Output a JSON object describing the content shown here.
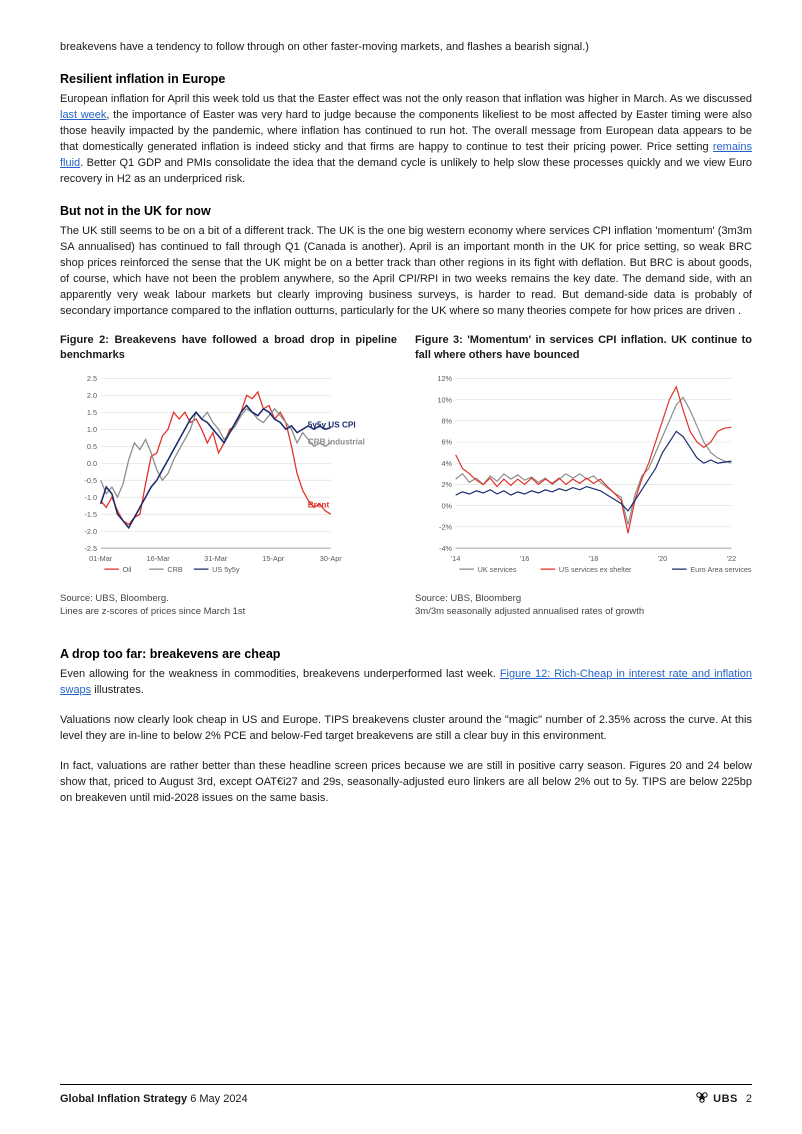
{
  "introTail": "breakevens have a tendency to follow through on other faster-moving markets, and flashes a bearish signal.)",
  "sec1": {
    "heading": "Resilient inflation in Europe",
    "body_a": "European inflation for April this week told us that the Easter effect was not the only reason that inflation was higher in March. As we discussed ",
    "link1": "last week",
    "body_b": ", the importance of Easter was very hard to judge because the components likeliest to be most affected by Easter timing were also those heavily impacted by the pandemic, where inflation has continued to run hot. The overall message from European data appears to be that domestically generated inflation is indeed sticky and that firms are happy to continue to test their pricing power. Price setting ",
    "link2": "remains fluid",
    "body_c": ". Better Q1 GDP and PMIs consolidate the idea that the demand cycle is unlikely to help slow these processes quickly and we view Euro recovery in H2 as an underpriced risk."
  },
  "sec2": {
    "heading": "But not in the UK for now",
    "body": "The UK still seems to be on a bit of a different track. The UK is the one big western economy where services CPI inflation 'momentum' (3m3m SA annualised) has continued to fall through Q1 (Canada is another). April is an important month in the UK for price setting, so weak BRC shop prices reinforced the sense that the UK might be on a better track than other regions in its fight with deflation. But BRC is about goods, of course, which have not been the problem anywhere, so the April CPI/RPI in two weeks remains the key date. The demand side, with an apparently very weak labour markets but clearly improving business surveys, is harder to read. But demand-side data is probably of secondary importance compared to the inflation outturns, particularly for the UK where so many theories compete for how prices are driven ."
  },
  "fig2": {
    "title": "Figure 2: Breakevens have followed a broad drop in pipeline benchmarks",
    "source1": "Source: UBS, Bloomberg.",
    "source2": "Lines are z-scores of prices since March 1st",
    "chart": {
      "type": "line",
      "ylim": [
        -2.5,
        2.5
      ],
      "ytick_step": 0.5,
      "yticks_labels": [
        "2.5",
        "2.0",
        "1.5",
        "1.0",
        "0.5",
        "0.0",
        "-0.5",
        "-1.0",
        "-1.5",
        "-2.0",
        "-2.5"
      ],
      "xticks": [
        "01-Mar",
        "16-Mar",
        "31-Mar",
        "15-Apr",
        "30-Apr"
      ],
      "grid_color": "#d9d9d9",
      "background_color": "#ffffff",
      "axis_color": "#666666",
      "tick_fontsize": 8,
      "tick_color": "#595959",
      "legend": [
        "Oil",
        "CRB",
        "US 5y5y"
      ],
      "legend_colors": [
        "#e03127",
        "#8c8c8c",
        "#1b2a6b"
      ],
      "legend_fontsize": 8,
      "annotations": [
        {
          "text": "5y5y US CPI",
          "color": "#1b2a6b",
          "x": 0.9,
          "y_val": 1.05
        },
        {
          "text": "CRB industrial",
          "color": "#8c8c8c",
          "x": 0.9,
          "y_val": 0.55
        },
        {
          "text": "Brent",
          "color": "#e03127",
          "x": 0.9,
          "y_val": -1.3
        }
      ],
      "series": {
        "Oil": {
          "color": "#e03127",
          "width": 1.4,
          "vals": [
            -1.1,
            -1.3,
            -1.0,
            -1.4,
            -1.7,
            -1.8,
            -1.6,
            -1.5,
            -0.6,
            0.2,
            0.3,
            0.8,
            1.0,
            1.5,
            1.3,
            1.5,
            1.2,
            1.3,
            1.0,
            0.6,
            0.9,
            0.3,
            0.6,
            1.0,
            1.1,
            1.5,
            2.0,
            1.9,
            2.1,
            1.6,
            1.7,
            1.3,
            1.5,
            1.2,
            0.5,
            -0.3,
            -0.8,
            -1.1,
            -1.3,
            -1.2,
            -1.4,
            -1.5
          ]
        },
        "CRB": {
          "color": "#8c8c8c",
          "width": 1.4,
          "vals": [
            -0.5,
            -0.9,
            -0.7,
            -1.0,
            -0.6,
            0.1,
            0.6,
            0.4,
            0.7,
            0.3,
            -0.2,
            -0.5,
            -0.3,
            0.1,
            0.4,
            0.7,
            1.0,
            1.5,
            1.3,
            1.5,
            1.2,
            1.0,
            0.7,
            0.9,
            1.1,
            1.4,
            1.6,
            1.5,
            1.3,
            1.2,
            1.4,
            1.6,
            1.4,
            1.2,
            1.0,
            0.6,
            0.9,
            0.7,
            0.5,
            0.6,
            0.5,
            0.6
          ]
        },
        "US5y5y": {
          "color": "#1b2a6b",
          "width": 1.7,
          "vals": [
            -1.2,
            -0.7,
            -0.9,
            -1.5,
            -1.7,
            -1.9,
            -1.6,
            -1.3,
            -1.0,
            -0.7,
            -0.5,
            -0.2,
            0.1,
            0.4,
            0.7,
            1.0,
            1.3,
            1.5,
            1.3,
            1.2,
            1.0,
            0.8,
            0.6,
            0.9,
            1.2,
            1.5,
            1.7,
            1.5,
            1.4,
            1.6,
            1.5,
            1.3,
            1.2,
            1.0,
            1.1,
            0.9,
            1.0,
            1.1,
            1.0,
            1.1,
            1.0,
            1.05
          ]
        }
      }
    }
  },
  "fig3": {
    "title": "Figure 3: 'Momentum' in services CPI inflation. UK continue to fall where others have bounced",
    "source1": "Source: UBS, Bloomberg",
    "source2": "3m/3m seasonally adjusted annualised rates of growth",
    "chart": {
      "type": "line",
      "ylim": [
        -4,
        12
      ],
      "ytick_step": 2,
      "yticks_labels": [
        "12%",
        "10%",
        "8%",
        "6%",
        "4%",
        "2%",
        "0%",
        "-2%",
        "-4%"
      ],
      "xticks": [
        "'14",
        "'16",
        "'18",
        "'20",
        "'22"
      ],
      "grid_color": "#d9d9d9",
      "background_color": "#ffffff",
      "axis_color": "#666666",
      "tick_fontsize": 8,
      "tick_color": "#595959",
      "legend": [
        "UK services",
        "US services ex shelter",
        "Euro Area services"
      ],
      "legend_colors": [
        "#8c8c8c",
        "#e03127",
        "#1b2a6b"
      ],
      "legend_fontsize": 8,
      "series": {
        "UK": {
          "color": "#8c8c8c",
          "width": 1.3,
          "vals": [
            2.5,
            3.0,
            2.2,
            2.6,
            2.0,
            2.8,
            2.3,
            3.0,
            2.5,
            2.9,
            2.4,
            2.7,
            2.2,
            2.6,
            2.0,
            2.5,
            3.0,
            2.6,
            3.0,
            2.5,
            2.8,
            2.2,
            1.7,
            1.2,
            0.8,
            -1.8,
            1.0,
            2.8,
            3.5,
            5.0,
            6.5,
            8.0,
            9.5,
            10.2,
            9.0,
            7.5,
            6.0,
            5.0,
            4.5,
            4.2,
            4.0
          ]
        },
        "US": {
          "color": "#e03127",
          "width": 1.3,
          "vals": [
            4.8,
            3.5,
            3.0,
            2.4,
            2.0,
            2.6,
            1.8,
            2.5,
            1.9,
            2.5,
            2.0,
            2.6,
            2.0,
            2.5,
            2.1,
            2.6,
            2.0,
            2.5,
            2.1,
            2.6,
            2.1,
            2.5,
            1.8,
            1.2,
            0.5,
            -2.6,
            0.5,
            2.5,
            4.0,
            6.0,
            8.0,
            10.0,
            11.2,
            9.0,
            7.0,
            6.0,
            5.5,
            6.0,
            7.0,
            7.3,
            7.4
          ]
        },
        "Euro": {
          "color": "#1b2a6b",
          "width": 1.3,
          "vals": [
            1.0,
            1.3,
            1.1,
            1.4,
            1.2,
            1.5,
            1.1,
            1.4,
            1.0,
            1.3,
            1.1,
            1.4,
            1.2,
            1.5,
            1.3,
            1.6,
            1.4,
            1.7,
            1.5,
            1.8,
            1.6,
            1.4,
            1.0,
            0.6,
            0.2,
            -0.5,
            0.5,
            1.5,
            2.5,
            3.5,
            5.0,
            6.0,
            7.0,
            6.5,
            5.5,
            4.5,
            4.0,
            4.3,
            4.0,
            4.1,
            4.2
          ]
        }
      }
    }
  },
  "sec3": {
    "heading": "A drop too far: breakevens are cheap",
    "p1a": "Even allowing for the weakness in commodities, breakevens underperformed last week. ",
    "p1link": "Figure 12: Rich-Cheap in interest rate and inflation swaps",
    "p1b": " illustrates.",
    "p2": "Valuations now clearly look cheap in US and Europe. TIPS breakevens cluster around the \"magic\" number of 2.35% across the curve. At this level they are in-line to below 2% PCE and below-Fed target breakevens are still a clear buy in this environment.",
    "p3": "In fact, valuations are rather better than these headline screen prices because we are still in positive carry season. Figures 20 and 24 below show that, priced to August 3rd, except OAT€i27 and 29s, seasonally-adjusted euro linkers are all below 2% out to 5y. TIPS are below 225bp on breakeven until mid-2028 issues on the same basis."
  },
  "footer": {
    "leftBold": "Global Inflation Strategy",
    "leftDate": "6 May 2024",
    "brand": "UBS",
    "pageNum": "2"
  }
}
